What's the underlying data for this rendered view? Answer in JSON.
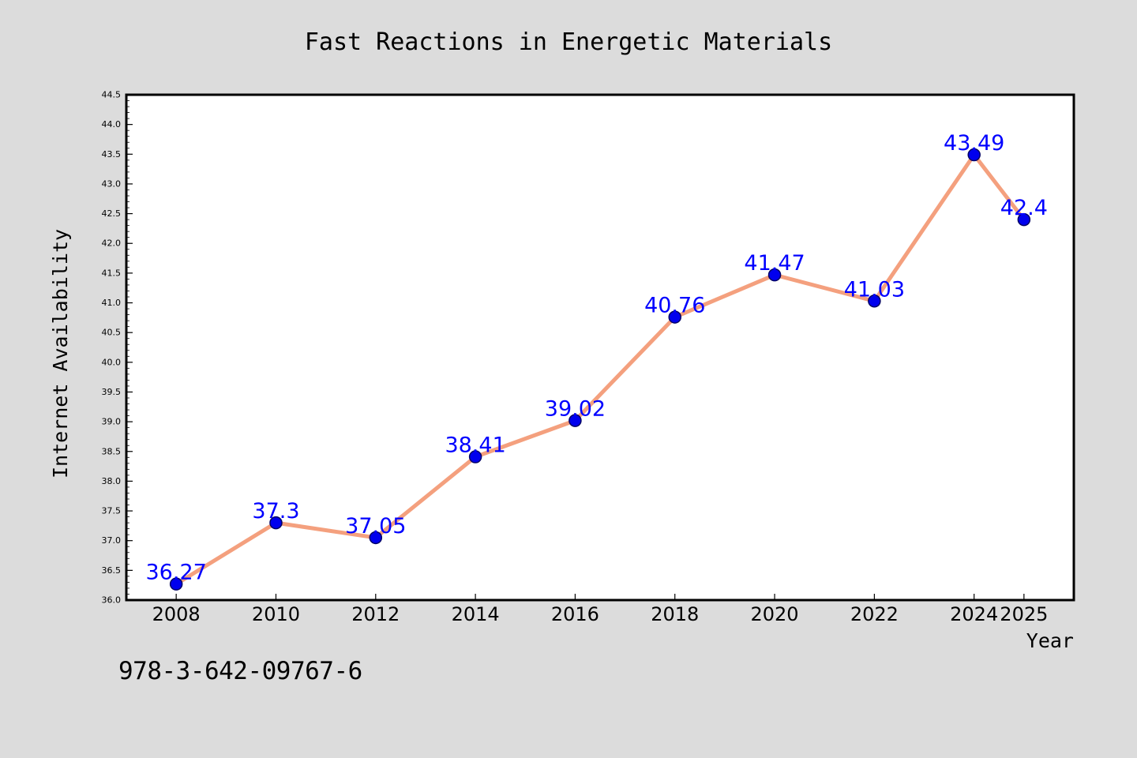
{
  "chart_data": {
    "type": "line",
    "title": "Fast Reactions in Energetic Materials",
    "xlabel": "Year",
    "ylabel": "Internet Availability",
    "x": [
      "2008",
      "2010",
      "2012",
      "2014",
      "2016",
      "2018",
      "2020",
      "2022",
      "2024",
      "2025"
    ],
    "values": [
      36.27,
      37.3,
      37.05,
      38.41,
      39.02,
      40.76,
      41.47,
      41.03,
      43.49,
      42.4
    ],
    "data_labels": [
      "36.27",
      "37.3",
      "37.05",
      "38.41",
      "39.02",
      "40.76",
      "41.47",
      "41.03",
      "43.49",
      "42.4"
    ],
    "ylim": [
      36.0,
      44.5
    ],
    "yticks": [
      "36.0",
      "36.5",
      "37.0",
      "37.5",
      "38.0",
      "38.5",
      "39.0",
      "39.5",
      "40.0",
      "40.5",
      "41.0",
      "41.5",
      "42.0",
      "42.5",
      "43.0",
      "43.5",
      "44.0",
      "44.5"
    ],
    "grid": false,
    "colors": {
      "line": "#f4a07e",
      "marker": "#0000ee",
      "marker_edge": "#000066",
      "data_label": "#0000ff",
      "background": "#dcdcdc",
      "plot_background": "#ffffff"
    }
  },
  "footer": {
    "code": "978-3-642-09767-6"
  }
}
